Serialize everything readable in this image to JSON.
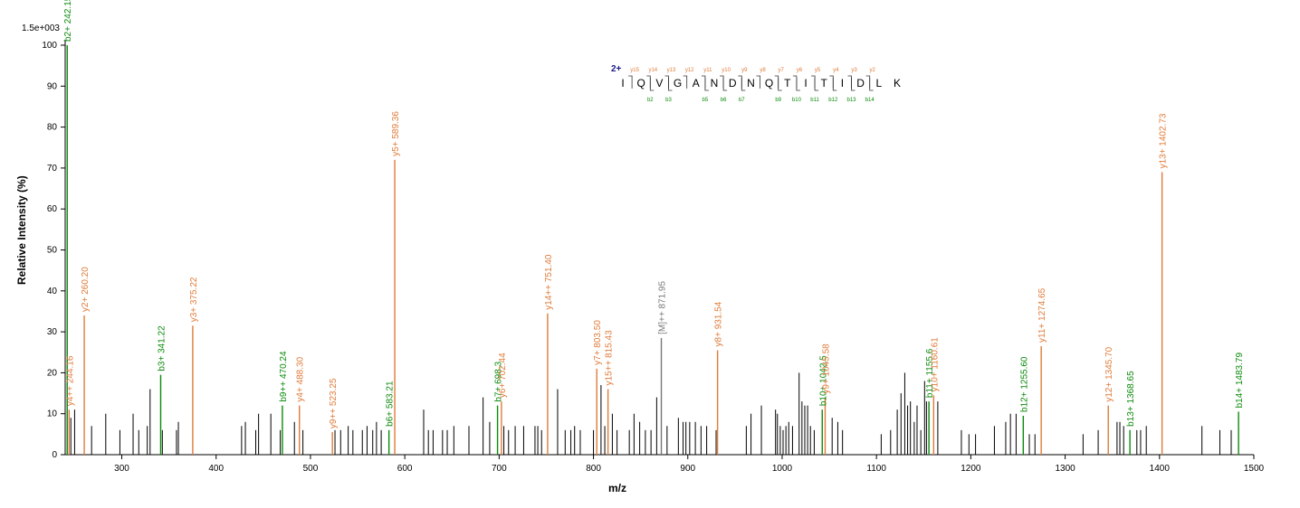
{
  "colors": {
    "y_ion": "#e07b39",
    "b_ion": "#0b8a0b",
    "precursor": "#777777",
    "unassigned": "#000000",
    "charge": "#1a1a8c",
    "axis": "#000000"
  },
  "chart_data": {
    "type": "bar",
    "title": "",
    "xlabel": "m/z",
    "ylabel": "Relative   Intensity (%)",
    "scale_label": "1.5e+003",
    "xlim": [
      240,
      1500
    ],
    "ylim": [
      0,
      100
    ],
    "grid": false,
    "xticks": [
      300,
      400,
      500,
      600,
      700,
      800,
      900,
      1000,
      1100,
      1200,
      1300,
      1400,
      1500
    ],
    "yticks": [
      0,
      10,
      20,
      30,
      40,
      50,
      60,
      70,
      80,
      90,
      100
    ],
    "annotated_peaks": [
      {
        "type": "b",
        "mz": 242.15,
        "intensity": 100,
        "label": "b2+ 242.15"
      },
      {
        "type": "y",
        "mz": 244.16,
        "intensity": 11,
        "label": "y4++ 244.16"
      },
      {
        "type": "y",
        "mz": 260.2,
        "intensity": 34,
        "label": "y2+ 260.20"
      },
      {
        "type": "b",
        "mz": 341.22,
        "intensity": 19.5,
        "label": "b3+ 341.22"
      },
      {
        "type": "y",
        "mz": 375.22,
        "intensity": 31.5,
        "label": "y3+ 375.22"
      },
      {
        "type": "b",
        "mz": 470.24,
        "intensity": 12,
        "label": "b9++ 470.24"
      },
      {
        "type": "y",
        "mz": 488.3,
        "intensity": 12,
        "label": "y4+ 488.30"
      },
      {
        "type": "y",
        "mz": 523.25,
        "intensity": 5.5,
        "label": "y9++ 523.25"
      },
      {
        "type": "b",
        "mz": 583.21,
        "intensity": 6,
        "label": "b6+ 583.21"
      },
      {
        "type": "y",
        "mz": 589.36,
        "intensity": 72,
        "label": "y5+ 589.36"
      },
      {
        "type": "b",
        "mz": 698.3,
        "intensity": 12,
        "label": "b7+ 698.3"
      },
      {
        "type": "y",
        "mz": 702.44,
        "intensity": 13,
        "label": "y6+ 702.44"
      },
      {
        "type": "y",
        "mz": 751.4,
        "intensity": 34.5,
        "label": "y14++ 751.40"
      },
      {
        "type": "y",
        "mz": 803.5,
        "intensity": 21,
        "label": "y7+ 803.50"
      },
      {
        "type": "y",
        "mz": 815.43,
        "intensity": 16,
        "label": "y15++ 815.43"
      },
      {
        "type": "precursor",
        "mz": 871.95,
        "intensity": 28.5,
        "label": "[M]++ 871.95"
      },
      {
        "type": "y",
        "mz": 931.54,
        "intensity": 25.5,
        "label": "y8+ 931.54"
      },
      {
        "type": "b",
        "mz": 1042.5,
        "intensity": 11,
        "label": "b10+ 1042.5"
      },
      {
        "type": "y",
        "mz": 1045.58,
        "intensity": 14,
        "label": "y9+ 1045.58"
      },
      {
        "type": "b",
        "mz": 1155.6,
        "intensity": 13,
        "label": "b11+ 1155.6"
      },
      {
        "type": "y",
        "mz": 1160.61,
        "intensity": 14.5,
        "label": "y10+ 1160.61"
      },
      {
        "type": "b",
        "mz": 1255.6,
        "intensity": 9.5,
        "label": "b12+ 1255.60"
      },
      {
        "type": "y",
        "mz": 1274.65,
        "intensity": 26.5,
        "label": "y11+ 1274.65"
      },
      {
        "type": "y",
        "mz": 1345.7,
        "intensity": 12,
        "label": "y12+ 1345.70"
      },
      {
        "type": "b",
        "mz": 1368.65,
        "intensity": 6,
        "label": "b13+ 1368.65"
      },
      {
        "type": "y",
        "mz": 1402.73,
        "intensity": 69,
        "label": "y13+ 1402.73"
      },
      {
        "type": "b",
        "mz": 1483.79,
        "intensity": 10.5,
        "label": "b14+ 1483.79"
      }
    ],
    "unassigned_peaks": [
      [
        246,
        9
      ],
      [
        250,
        11
      ],
      [
        268,
        7
      ],
      [
        283,
        10
      ],
      [
        298,
        6
      ],
      [
        312,
        10
      ],
      [
        318,
        6
      ],
      [
        327,
        7
      ],
      [
        330,
        16
      ],
      [
        343,
        6
      ],
      [
        358,
        6
      ],
      [
        360,
        8
      ],
      [
        427,
        7
      ],
      [
        431,
        8
      ],
      [
        442,
        6
      ],
      [
        445,
        10
      ],
      [
        458,
        10
      ],
      [
        468,
        6
      ],
      [
        483,
        8
      ],
      [
        492,
        6
      ],
      [
        526,
        6
      ],
      [
        532,
        6
      ],
      [
        540,
        7
      ],
      [
        545,
        6
      ],
      [
        555,
        6
      ],
      [
        560,
        7
      ],
      [
        566,
        6
      ],
      [
        570,
        8
      ],
      [
        575,
        6
      ],
      [
        620,
        11
      ],
      [
        625,
        6
      ],
      [
        630,
        6
      ],
      [
        640,
        6
      ],
      [
        645,
        6
      ],
      [
        652,
        7
      ],
      [
        668,
        7
      ],
      [
        683,
        14
      ],
      [
        690,
        8
      ],
      [
        705,
        7
      ],
      [
        710,
        6
      ],
      [
        717,
        7
      ],
      [
        726,
        7
      ],
      [
        738,
        7
      ],
      [
        741,
        7
      ],
      [
        745,
        6
      ],
      [
        762,
        16
      ],
      [
        770,
        6
      ],
      [
        776,
        6
      ],
      [
        780,
        7
      ],
      [
        786,
        6
      ],
      [
        800,
        6
      ],
      [
        808,
        17
      ],
      [
        812,
        7
      ],
      [
        820,
        10
      ],
      [
        825,
        6
      ],
      [
        838,
        6
      ],
      [
        843,
        10
      ],
      [
        849,
        8
      ],
      [
        855,
        6
      ],
      [
        861,
        6
      ],
      [
        867,
        14
      ],
      [
        878,
        7
      ],
      [
        890,
        9
      ],
      [
        895,
        8
      ],
      [
        898,
        8
      ],
      [
        902,
        8
      ],
      [
        908,
        8
      ],
      [
        914,
        7
      ],
      [
        920,
        7
      ],
      [
        930,
        6
      ],
      [
        962,
        7
      ],
      [
        967,
        10
      ],
      [
        978,
        12
      ],
      [
        993,
        11
      ],
      [
        995,
        10
      ],
      [
        998,
        7
      ],
      [
        1001,
        6
      ],
      [
        1004,
        7
      ],
      [
        1007,
        8
      ],
      [
        1011,
        7
      ],
      [
        1018,
        20
      ],
      [
        1021,
        13
      ],
      [
        1024,
        12
      ],
      [
        1027,
        12
      ],
      [
        1030,
        7
      ],
      [
        1034,
        6
      ],
      [
        1053,
        9
      ],
      [
        1059,
        8
      ],
      [
        1064,
        6
      ],
      [
        1105,
        5
      ],
      [
        1115,
        6
      ],
      [
        1122,
        11
      ],
      [
        1126,
        15
      ],
      [
        1130,
        20
      ],
      [
        1133,
        12
      ],
      [
        1136,
        13
      ],
      [
        1140,
        8
      ],
      [
        1143,
        12
      ],
      [
        1147,
        6
      ],
      [
        1151,
        18
      ],
      [
        1153,
        13
      ],
      [
        1165,
        13
      ],
      [
        1190,
        6
      ],
      [
        1198,
        5
      ],
      [
        1205,
        5
      ],
      [
        1225,
        7
      ],
      [
        1237,
        8
      ],
      [
        1242,
        10
      ],
      [
        1248,
        10
      ],
      [
        1262,
        5
      ],
      [
        1268,
        5
      ],
      [
        1319,
        5
      ],
      [
        1335,
        6
      ],
      [
        1355,
        8
      ],
      [
        1358,
        8
      ],
      [
        1362,
        7
      ],
      [
        1376,
        6
      ],
      [
        1380,
        6
      ],
      [
        1386,
        7
      ],
      [
        1445,
        7
      ],
      [
        1464,
        6
      ],
      [
        1476,
        6
      ]
    ]
  },
  "sequence": {
    "charge": "2+",
    "residues": [
      "I",
      "Q",
      "V",
      "G",
      "A",
      "N",
      "D",
      "N",
      "Q",
      "T",
      "I",
      "T",
      "I",
      "D",
      "L",
      "K"
    ],
    "y_labels": [
      "y15",
      "y14",
      "y13",
      "y12",
      "y11",
      "y10",
      "y9",
      "y8",
      "y7",
      "y6",
      "y5",
      "y4",
      "y3",
      "y2"
    ],
    "b_labels": [
      "b2",
      "b3",
      "b5",
      "b6",
      "b7",
      "b9",
      "b10",
      "b11",
      "b12",
      "b13",
      "b14"
    ]
  }
}
